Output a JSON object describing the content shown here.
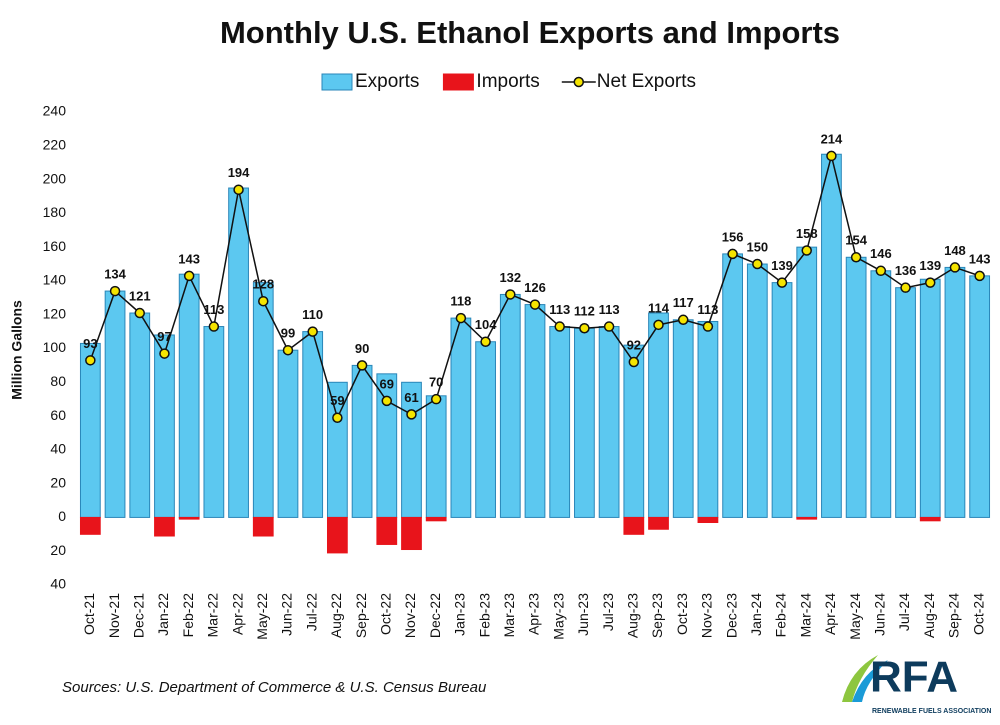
{
  "chart_data": {
    "type": "bar_line",
    "title": "Monthly U.S. Ethanol Exports and Imports",
    "y_label": "Million Gallons",
    "source": "Sources: U.S. Department of Commerce & U.S. Census Bureau",
    "logo_text": "RFA",
    "logo_subtitle": "RENEWABLE FUELS ASSOCIATION",
    "categories": [
      "Oct-21",
      "Nov-21",
      "Dec-21",
      "Jan-22",
      "Feb-22",
      "Mar-22",
      "Apr-22",
      "May-22",
      "Jun-22",
      "Jul-22",
      "Aug-22",
      "Sep-22",
      "Oct-22",
      "Nov-22",
      "Dec-22",
      "Jan-23",
      "Feb-23",
      "Mar-23",
      "Apr-23",
      "May-23",
      "Jun-23",
      "Jul-23",
      "Aug-23",
      "Sep-23",
      "Oct-23",
      "Nov-23",
      "Dec-23",
      "Jan-24",
      "Feb-24",
      "Mar-24",
      "Apr-24",
      "May-24",
      "Jun-24",
      "Jul-24",
      "Aug-24",
      "Sep-24",
      "Oct-24"
    ],
    "series": [
      {
        "name": "Exports",
        "kind": "bar",
        "color": "#5cc8f0",
        "values": [
          103,
          134,
          121,
          108,
          144,
          113,
          195,
          139,
          99,
          110,
          80,
          90,
          85,
          80,
          72,
          118,
          104,
          132,
          126,
          113,
          112,
          113,
          102,
          121,
          117,
          116,
          156,
          150,
          139,
          160,
          215,
          154,
          146,
          136,
          141,
          148,
          143
        ]
      },
      {
        "name": "Imports",
        "kind": "bar",
        "color": "#e8141b",
        "values": [
          -10,
          0,
          0,
          -11,
          -1,
          0,
          0,
          -11,
          0,
          0,
          -21,
          0,
          -16,
          -19,
          -2,
          0,
          0,
          0,
          0,
          0,
          0,
          0,
          -10,
          -7,
          0,
          -3,
          0,
          0,
          0,
          -1,
          0,
          0,
          0,
          0,
          -2,
          0,
          0
        ]
      },
      {
        "name": "Net Exports",
        "kind": "line",
        "color": "#111111",
        "marker_color": "#f5e400",
        "values": [
          93,
          134,
          121,
          97,
          143,
          113,
          194,
          128,
          99,
          110,
          59,
          90,
          69,
          61,
          70,
          118,
          104,
          132,
          126,
          113,
          112,
          113,
          92,
          114,
          117,
          113,
          156,
          150,
          139,
          158,
          214,
          154,
          146,
          136,
          139,
          148,
          143
        ]
      }
    ],
    "data_labels": true,
    "ylim": [
      -40,
      240
    ],
    "yticks": [
      {
        "value": -40,
        "label": "40"
      },
      {
        "value": -20,
        "label": "20"
      },
      0,
      20,
      40,
      60,
      80,
      100,
      120,
      140,
      160,
      180,
      200,
      220,
      240
    ],
    "grid": false,
    "legend": "top"
  }
}
